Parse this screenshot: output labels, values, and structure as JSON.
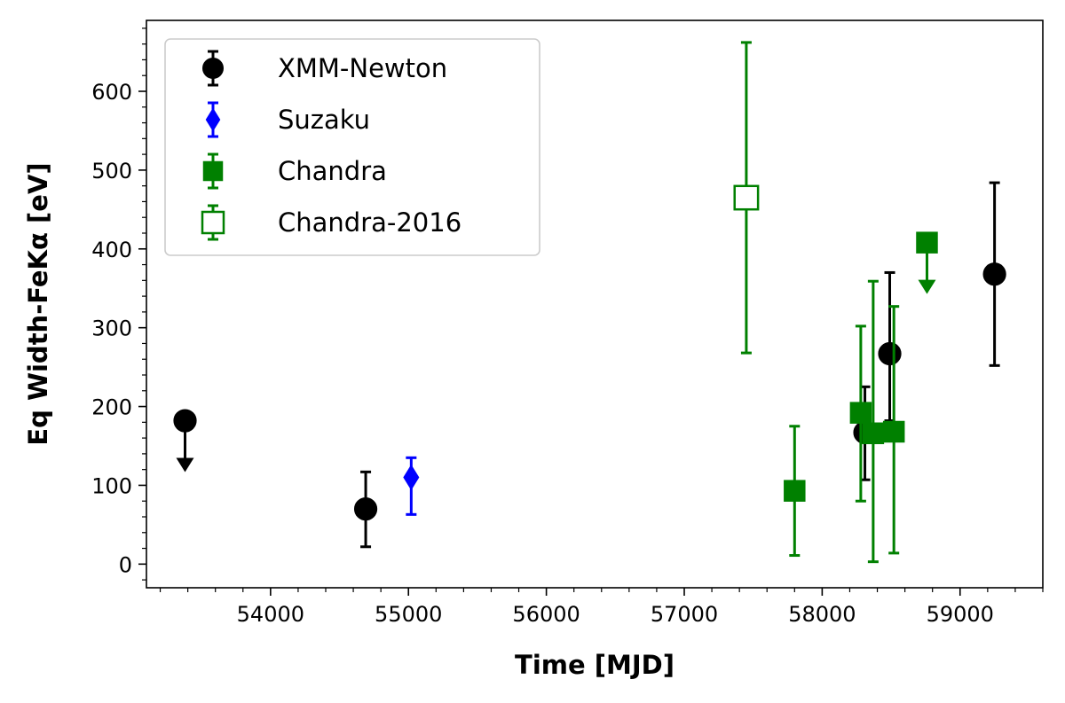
{
  "chart_data": {
    "type": "scatter",
    "title": "",
    "xlabel": "Time [MJD]",
    "ylabel": "Eq Width-FeKα [eV]",
    "xlim": [
      53100,
      59600
    ],
    "ylim": [
      -30,
      690
    ],
    "xticks": [
      54000,
      55000,
      56000,
      57000,
      58000,
      59000
    ],
    "yticks": [
      0,
      100,
      200,
      300,
      400,
      500,
      600
    ],
    "legend_position": "upper-left",
    "series": [
      {
        "name": "XMM-Newton",
        "marker": "circle",
        "color": "#000000",
        "filled": true,
        "points": [
          {
            "x": 53380,
            "y": 182,
            "upper_limit": true
          },
          {
            "x": 54690,
            "y": 70,
            "yerr_low": 48,
            "yerr_high": 47
          },
          {
            "x": 58310,
            "y": 167,
            "yerr_low": 60,
            "yerr_high": 58
          },
          {
            "x": 58490,
            "y": 267,
            "yerr_low": 85,
            "yerr_high": 103
          },
          {
            "x": 59250,
            "y": 368,
            "yerr_low": 116,
            "yerr_high": 116
          }
        ]
      },
      {
        "name": "Suzaku",
        "marker": "diamond",
        "color": "#0000ff",
        "filled": true,
        "points": [
          {
            "x": 55020,
            "y": 110,
            "yerr_low": 47,
            "yerr_high": 25
          }
        ]
      },
      {
        "name": "Chandra",
        "marker": "square",
        "color": "#008000",
        "filled": true,
        "points": [
          {
            "x": 57800,
            "y": 93,
            "yerr_low": 82,
            "yerr_high": 82
          },
          {
            "x": 58280,
            "y": 192,
            "yerr_low": 112,
            "yerr_high": 110
          },
          {
            "x": 58370,
            "y": 166,
            "yerr_low": 163,
            "yerr_high": 193
          },
          {
            "x": 58520,
            "y": 168,
            "yerr_low": 154,
            "yerr_high": 159
          },
          {
            "x": 58760,
            "y": 408,
            "upper_limit": true
          }
        ]
      },
      {
        "name": "Chandra-2016",
        "marker": "square",
        "color": "#008000",
        "filled": false,
        "points": [
          {
            "x": 57450,
            "y": 465,
            "yerr_low": 197,
            "yerr_high": 197
          }
        ]
      }
    ]
  }
}
